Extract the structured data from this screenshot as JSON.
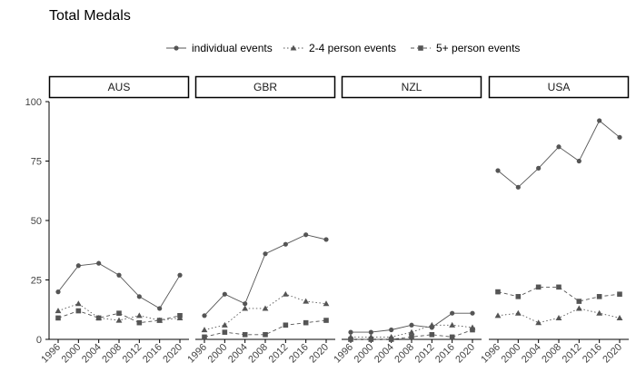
{
  "chart_data": {
    "type": "line",
    "title": "Total Medals",
    "xlabel": "",
    "ylabel": "",
    "legend_position": "top",
    "grid": false,
    "x": [
      1996,
      2000,
      2004,
      2008,
      2012,
      2016,
      2020
    ],
    "ylim": [
      0,
      100
    ],
    "yticks": [
      0,
      25,
      50,
      75,
      100
    ],
    "series_styles": [
      {
        "name": "individual events",
        "marker": "circle",
        "dash": "solid"
      },
      {
        "name": "2-4 person events",
        "marker": "triangle",
        "dash": "dotted"
      },
      {
        "name": "5+ person events",
        "marker": "square",
        "dash": "dashed"
      }
    ],
    "panels": [
      {
        "label": "AUS",
        "series": [
          {
            "name": "individual events",
            "values": [
              20,
              31,
              32,
              27,
              18,
              13,
              27
            ]
          },
          {
            "name": "2-4 person events",
            "values": [
              12,
              15,
              9,
              8,
              10,
              8,
              9
            ]
          },
          {
            "name": "5+ person events",
            "values": [
              9,
              12,
              9,
              11,
              7,
              8,
              10
            ]
          }
        ]
      },
      {
        "label": "GBR",
        "series": [
          {
            "name": "individual events",
            "values": [
              10,
              19,
              15,
              36,
              40,
              44,
              42
            ]
          },
          {
            "name": "2-4 person events",
            "values": [
              4,
              6,
              13,
              13,
              19,
              16,
              15
            ]
          },
          {
            "name": "5+ person events",
            "values": [
              1,
              3,
              2,
              2,
              6,
              7,
              8
            ]
          }
        ]
      },
      {
        "label": "NZL",
        "series": [
          {
            "name": "individual events",
            "values": [
              3,
              3,
              4,
              6,
              5,
              11,
              11
            ]
          },
          {
            "name": "2-4 person events",
            "values": [
              1,
              1,
              1,
              3,
              6,
              6,
              5
            ]
          },
          {
            "name": "5+ person events",
            "values": [
              0,
              0,
              0,
              1,
              2,
              1,
              4
            ]
          }
        ]
      },
      {
        "label": "USA",
        "series": [
          {
            "name": "individual events",
            "values": [
              71,
              64,
              72,
              81,
              75,
              92,
              85
            ]
          },
          {
            "name": "2-4 person events",
            "values": [
              10,
              11,
              7,
              9,
              13,
              11,
              9
            ]
          },
          {
            "name": "5+ person events",
            "values": [
              20,
              18,
              22,
              22,
              16,
              18,
              19
            ]
          }
        ]
      }
    ]
  },
  "colors": {
    "series": "#555555",
    "axis": "#000000",
    "text": "#000000",
    "tick_text": "#444444"
  }
}
